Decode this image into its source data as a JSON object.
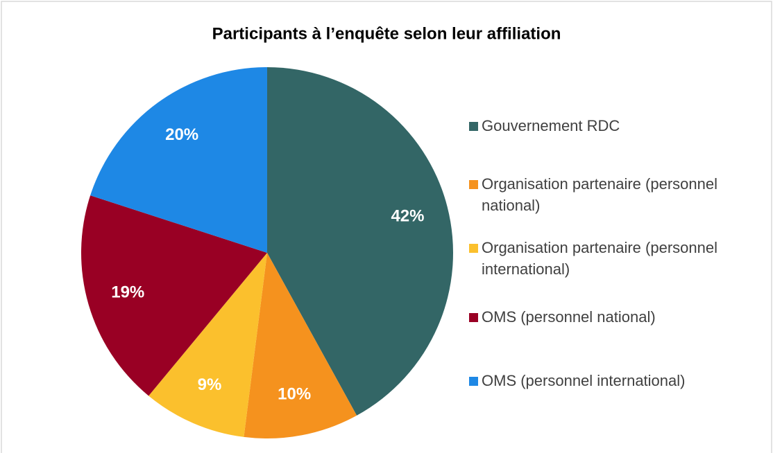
{
  "chart_data": {
    "type": "pie",
    "title": "Participants à l’enquête selon leur affiliation",
    "categories": [
      "Gouvernement RDC",
      "Organisation partenaire (personnel national)",
      "Organisation partenaire (personnel international)",
      "OMS (personnel national)",
      "OMS (personnel international)"
    ],
    "values": [
      42,
      10,
      9,
      19,
      20
    ],
    "value_labels": [
      "42%",
      "10%",
      "9%",
      "19%",
      "20%"
    ],
    "colors": [
      "#336666",
      "#f5921e",
      "#fbc02d",
      "#990024",
      "#1e88e5"
    ],
    "legend": "right"
  }
}
